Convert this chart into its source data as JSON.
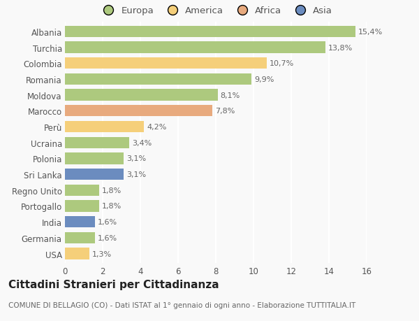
{
  "categories": [
    "Albania",
    "Turchia",
    "Colombia",
    "Romania",
    "Moldova",
    "Marocco",
    "Perù",
    "Ucraina",
    "Polonia",
    "Sri Lanka",
    "Regno Unito",
    "Portogallo",
    "India",
    "Germania",
    "USA"
  ],
  "values": [
    15.4,
    13.8,
    10.7,
    9.9,
    8.1,
    7.8,
    4.2,
    3.4,
    3.1,
    3.1,
    1.8,
    1.8,
    1.6,
    1.6,
    1.3
  ],
  "labels": [
    "15,4%",
    "13,8%",
    "10,7%",
    "9,9%",
    "8,1%",
    "7,8%",
    "4,2%",
    "3,4%",
    "3,1%",
    "3,1%",
    "1,8%",
    "1,8%",
    "1,6%",
    "1,6%",
    "1,3%"
  ],
  "colors": [
    "#adc97e",
    "#adc97e",
    "#f5cf7a",
    "#adc97e",
    "#adc97e",
    "#e8aa7e",
    "#f5cf7a",
    "#adc97e",
    "#adc97e",
    "#6b8cbf",
    "#adc97e",
    "#adc97e",
    "#6b8cbf",
    "#adc97e",
    "#f5cf7a"
  ],
  "legend_order": [
    "Europa",
    "America",
    "Africa",
    "Asia"
  ],
  "legend_colors": {
    "Europa": "#adc97e",
    "America": "#f5cf7a",
    "Africa": "#e8aa7e",
    "Asia": "#6b8cbf"
  },
  "title": "Cittadini Stranieri per Cittadinanza",
  "subtitle": "COMUNE DI BELLAGIO (CO) - Dati ISTAT al 1° gennaio di ogni anno - Elaborazione TUTTITALIA.IT",
  "xlim": [
    0,
    16
  ],
  "xticks": [
    0,
    2,
    4,
    6,
    8,
    10,
    12,
    14,
    16
  ],
  "background_color": "#f9f9f9",
  "grid_color": "#ffffff",
  "bar_height": 0.72,
  "label_fontsize": 8,
  "tick_fontsize": 8.5,
  "title_fontsize": 11,
  "subtitle_fontsize": 7.5
}
